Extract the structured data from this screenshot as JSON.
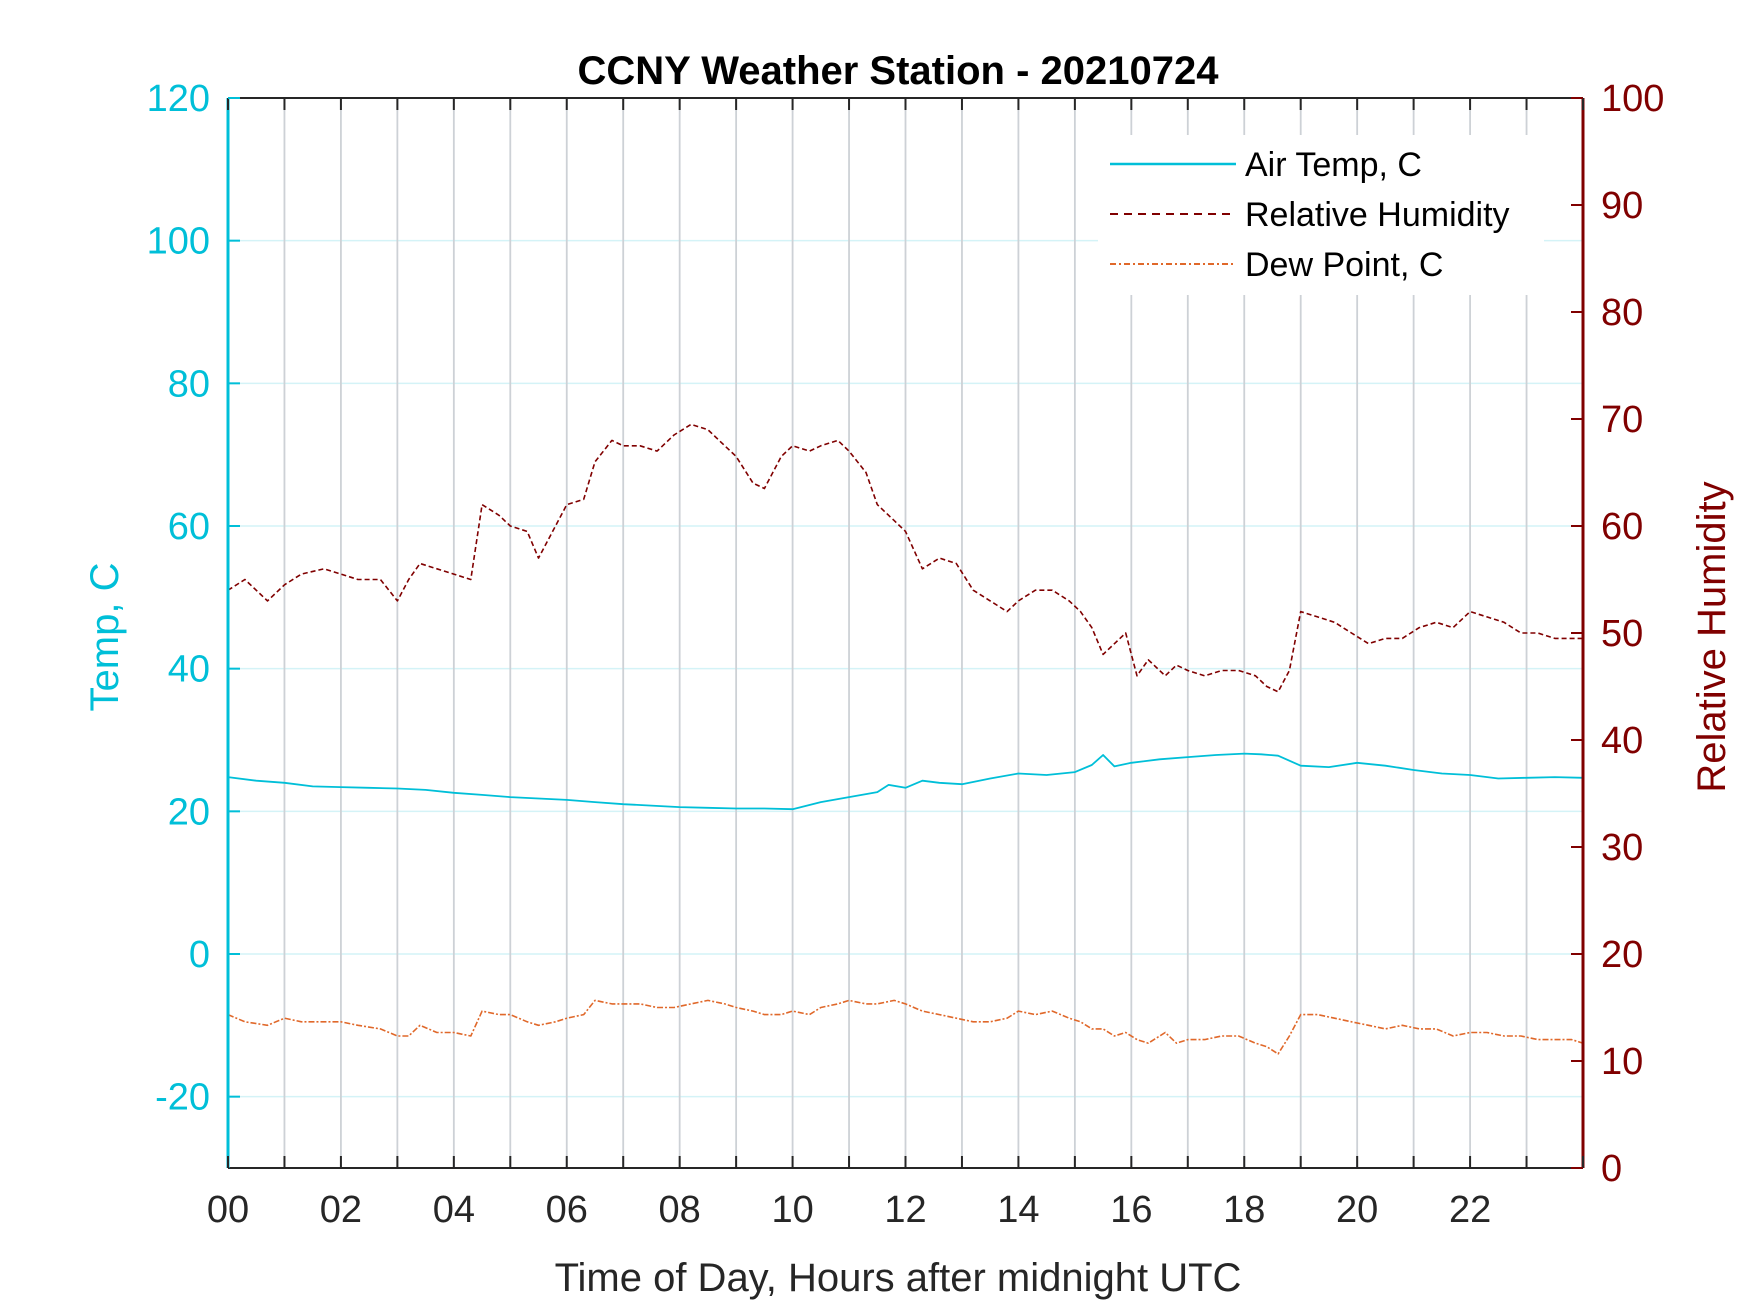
{
  "chart_data": {
    "type": "line",
    "title": "CCNY Weather Station - 20210724",
    "xlabel": "Time of Day, Hours after midnight UTC",
    "ylabel_left": "Temp, C",
    "ylabel_right": "Relative Humidity",
    "xlim": [
      0,
      24
    ],
    "ylim_left": [
      -30,
      120
    ],
    "ylim_right": [
      0,
      100
    ],
    "x_ticks": [
      "00",
      "02",
      "04",
      "06",
      "08",
      "10",
      "12",
      "14",
      "16",
      "18",
      "20",
      "22"
    ],
    "y_ticks_left": [
      "-20",
      "0",
      "20",
      "40",
      "60",
      "80",
      "100",
      "120"
    ],
    "y_ticks_right": [
      "0",
      "10",
      "20",
      "30",
      "40",
      "50",
      "60",
      "70",
      "80",
      "90",
      "100"
    ],
    "grid": true,
    "legend_position": "top-right",
    "colors": {
      "left_axis": "#00BFD8",
      "right_axis": "#800000",
      "dew": "#E0682A",
      "grid_vertical": "#CDD1D6",
      "grid_horizontal": "#D4F3F7"
    },
    "series": [
      {
        "name": "Air Temp, C",
        "axis": "left",
        "style": "solid",
        "x": [
          0,
          0.5,
          1,
          1.5,
          2,
          2.5,
          3,
          3.5,
          4,
          4.5,
          5,
          5.5,
          6,
          6.5,
          7,
          7.5,
          8,
          8.5,
          9,
          9.5,
          10,
          10.5,
          11,
          11.5,
          11.7,
          12,
          12.3,
          12.6,
          13,
          13.5,
          14,
          14.5,
          15,
          15.3,
          15.5,
          15.7,
          16,
          16.5,
          17,
          17.5,
          18,
          18.3,
          18.6,
          19,
          19.5,
          20,
          20.5,
          21,
          21.5,
          22,
          22.5,
          23,
          23.5,
          24
        ],
        "y": [
          24.8,
          24.3,
          24,
          23.5,
          23.4,
          23.3,
          23.2,
          23,
          22.6,
          22.3,
          22.0,
          21.8,
          21.6,
          21.3,
          21.0,
          20.8,
          20.6,
          20.5,
          20.4,
          20.4,
          20.3,
          21.3,
          22,
          22.7,
          23.7,
          23.3,
          24.3,
          24.0,
          23.8,
          24.6,
          25.3,
          25.1,
          25.5,
          26.5,
          27.9,
          26.3,
          26.8,
          27.3,
          27.6,
          27.9,
          28.1,
          28.0,
          27.8,
          26.4,
          26.2,
          26.8,
          26.4,
          25.8,
          25.3,
          25.1,
          24.6,
          24.7,
          24.8,
          24.7
        ]
      },
      {
        "name": "Relative Humidity",
        "axis": "right",
        "style": "dashed",
        "x": [
          0,
          0.3,
          0.7,
          1,
          1.3,
          1.7,
          2,
          2.3,
          2.7,
          3,
          3.2,
          3.4,
          3.7,
          4,
          4.3,
          4.5,
          4.8,
          5,
          5.3,
          5.5,
          5.8,
          6,
          6.3,
          6.5,
          6.8,
          7,
          7.3,
          7.6,
          7.9,
          8.2,
          8.5,
          8.8,
          9,
          9.3,
          9.5,
          9.8,
          10,
          10.3,
          10.5,
          10.8,
          11,
          11.3,
          11.5,
          11.8,
          12,
          12.3,
          12.6,
          12.9,
          13.2,
          13.5,
          13.8,
          14,
          14.3,
          14.6,
          14.9,
          15.1,
          15.3,
          15.5,
          15.7,
          15.9,
          16.1,
          16.3,
          16.6,
          16.8,
          17.0,
          17.3,
          17.6,
          17.9,
          18.2,
          18.4,
          18.6,
          18.8,
          19,
          19.3,
          19.6,
          19.9,
          20.2,
          20.5,
          20.8,
          21.1,
          21.4,
          21.7,
          22,
          22.3,
          22.6,
          22.9,
          23.2,
          23.5,
          23.8,
          24
        ],
        "y": [
          54,
          55,
          53,
          54.5,
          55.5,
          56,
          55.5,
          55,
          55,
          53,
          55,
          56.5,
          56,
          55.5,
          55,
          62,
          61,
          60,
          59.5,
          57,
          60,
          62,
          62.5,
          66,
          68,
          67.5,
          67.5,
          67,
          68.5,
          69.5,
          69,
          67.5,
          66.5,
          64,
          63.5,
          66.5,
          67.5,
          67,
          67.5,
          68,
          67,
          65,
          62,
          60.5,
          59.5,
          56,
          57,
          56.5,
          54,
          53,
          52,
          53,
          54,
          54,
          53,
          52,
          50.5,
          48,
          49,
          50,
          46,
          47.5,
          46,
          47,
          46.5,
          46,
          46.5,
          46.5,
          46,
          45,
          44.5,
          46.5,
          52,
          51.5,
          51,
          50,
          49,
          49.5,
          49.5,
          50.5,
          51,
          50.5,
          52,
          51.5,
          51,
          50,
          50,
          49.5,
          49.5,
          49.5
        ]
      },
      {
        "name": "Dew Point, C",
        "axis": "left",
        "style": "dashdot",
        "x": [
          0,
          0.3,
          0.7,
          1,
          1.3,
          1.7,
          2,
          2.3,
          2.7,
          3,
          3.2,
          3.4,
          3.7,
          4,
          4.3,
          4.5,
          4.8,
          5,
          5.3,
          5.5,
          5.8,
          6,
          6.3,
          6.5,
          6.8,
          7,
          7.3,
          7.6,
          7.9,
          8.2,
          8.5,
          8.8,
          9,
          9.3,
          9.5,
          9.8,
          10,
          10.3,
          10.5,
          10.8,
          11,
          11.3,
          11.5,
          11.8,
          12,
          12.3,
          12.6,
          12.9,
          13.2,
          13.5,
          13.8,
          14,
          14.3,
          14.6,
          14.9,
          15.1,
          15.3,
          15.5,
          15.7,
          15.9,
          16.1,
          16.3,
          16.6,
          16.8,
          17.0,
          17.3,
          17.6,
          17.9,
          18.2,
          18.4,
          18.6,
          18.8,
          19,
          19.3,
          19.6,
          19.9,
          20.2,
          20.5,
          20.8,
          21.1,
          21.4,
          21.7,
          22,
          22.3,
          22.6,
          22.9,
          23.2,
          23.5,
          23.8,
          24
        ],
        "y": [
          -8.5,
          -9.5,
          -10,
          -9,
          -9.5,
          -9.5,
          -9.5,
          -10,
          -10.5,
          -11.5,
          -11.5,
          -10,
          -11,
          -11,
          -11.5,
          -8,
          -8.5,
          -8.5,
          -9.5,
          -10,
          -9.5,
          -9,
          -8.5,
          -6.5,
          -7,
          -7,
          -7,
          -7.5,
          -7.5,
          -7,
          -6.5,
          -7,
          -7.5,
          -8,
          -8.5,
          -8.5,
          -8,
          -8.5,
          -7.5,
          -7,
          -6.5,
          -7,
          -7,
          -6.5,
          -7,
          -8,
          -8.5,
          -9,
          -9.5,
          -9.5,
          -9,
          -8,
          -8.5,
          -8,
          -9,
          -9.5,
          -10.5,
          -10.5,
          -11.5,
          -11,
          -12,
          -12.5,
          -11,
          -12.5,
          -12,
          -12,
          -11.5,
          -11.5,
          -12.5,
          -13,
          -14,
          -11.5,
          -8.5,
          -8.5,
          -9,
          -9.5,
          -10,
          -10.5,
          -10,
          -10.5,
          -10.5,
          -11.5,
          -11,
          -11,
          -11.5,
          -11.5,
          -12,
          -12,
          -12,
          -12.5
        ]
      }
    ]
  }
}
